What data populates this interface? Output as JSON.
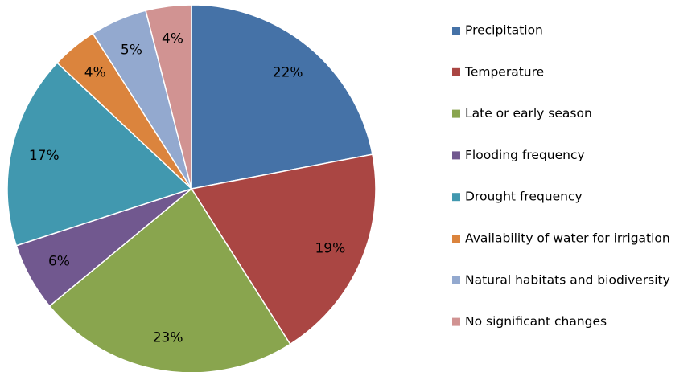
{
  "chart_data": {
    "type": "pie",
    "categories": [
      "Precipitation",
      "Temperature",
      "Late or early season",
      "Flooding frequency",
      "Drought frequency",
      "Availability of water for irrigation",
      "Natural habitats and biodiversity",
      "No significant changes"
    ],
    "values": [
      22,
      19,
      23,
      6,
      17,
      4,
      5,
      4
    ],
    "value_labels": [
      "22%",
      "19%",
      "23%",
      "6%",
      "17%",
      "4%",
      "5%",
      "4%"
    ],
    "colors": [
      "#4572a7",
      "#aa4643",
      "#89a54e",
      "#71588f",
      "#4198af",
      "#db843d",
      "#93a9cf",
      "#d19392"
    ],
    "legend": "right"
  }
}
